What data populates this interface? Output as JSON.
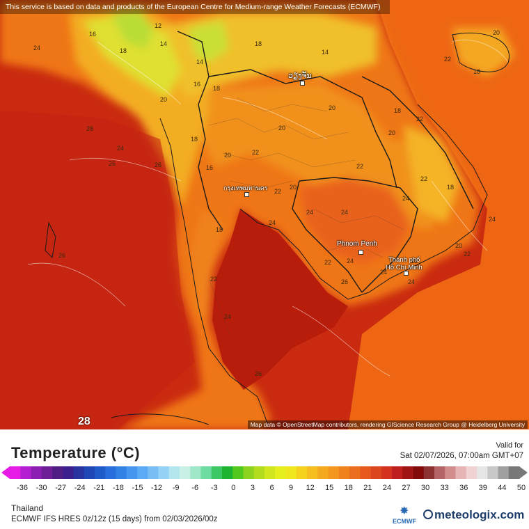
{
  "header": {
    "attribution": "This service is based on data and products of the European Centre for Medium-range Weather Forecasts (ECMWF)"
  },
  "map": {
    "credit": "Map data © OpenStreetMap contributors, rendering GIScience Research Group @ Heidelberg University",
    "cities": [
      {
        "name": "ວຽງຈັນ"
      },
      {
        "name": "กรุงเทพมหานคร"
      },
      {
        "name": "Phnom Penh"
      },
      {
        "name": "Thành phố"
      },
      {
        "name": "Hồ Chí Minh"
      }
    ],
    "contour_labels": [
      "12",
      "14",
      "16",
      "18",
      "20",
      "22",
      "24",
      "26",
      "28"
    ],
    "highlight_label": "28",
    "colors": {
      "sea": "#c92a10",
      "gulf": "#b81d0c",
      "lowland": "#ee6a10",
      "plain": "#f18a14",
      "hills": "#f4b023",
      "highland": "#dfe030",
      "peaks": "#a6dd3a"
    }
  },
  "legend": {
    "title": "Temperature (°C)",
    "valid_label": "Valid for",
    "valid_time": "Sat 02/07/2026, 07:00am GMT+07",
    "ticks": [
      "-36",
      "-30",
      "-27",
      "-24",
      "-21",
      "-18",
      "-15",
      "-12",
      "-9",
      "-6",
      "-3",
      "0",
      "3",
      "6",
      "9",
      "12",
      "15",
      "18",
      "21",
      "24",
      "27",
      "30",
      "33",
      "36",
      "39",
      "44",
      "50"
    ],
    "colors": [
      "#e61ce6",
      "#b41ed2",
      "#8c1eb4",
      "#6e1e96",
      "#501e82",
      "#3c1e8c",
      "#2832a0",
      "#1e46b4",
      "#1e5ac8",
      "#286edc",
      "#3282e6",
      "#4696f0",
      "#5aaaf5",
      "#78bef5",
      "#96d2f5",
      "#b4e6f0",
      "#c8f0e6",
      "#a0e6c8",
      "#6edca0",
      "#3cc864",
      "#1eb432",
      "#50c81e",
      "#8cd21e",
      "#b4dc1e",
      "#d2e61e",
      "#e6ee1e",
      "#f0e61e",
      "#f5d21e",
      "#f5be1e",
      "#f5aa1e",
      "#f5961e",
      "#f0821e",
      "#eb6e1e",
      "#e65a1e",
      "#dc461e",
      "#d2321e",
      "#be1e1e",
      "#a01414",
      "#820a0a",
      "#8c3232",
      "#b46464",
      "#d28c8c",
      "#e6b4b4",
      "#f0d2d2",
      "#e6e6e6",
      "#c8c8c8",
      "#a0a0a0",
      "#787878"
    ],
    "region": "Thailand",
    "model": "ECMWF IFS HRES 0z/12z (15 days) from  02/03/2026/00z"
  },
  "branding": {
    "ecmwf": "ECMWF",
    "meteologix": "meteologix.com"
  }
}
